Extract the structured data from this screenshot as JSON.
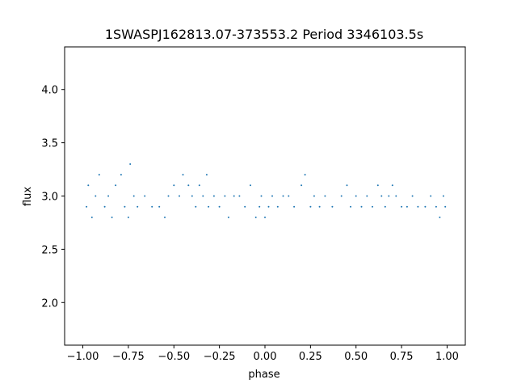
{
  "chart_data": {
    "type": "scatter",
    "title": "1SWASPJ162813.07-373553.2 Period 3346103.5s",
    "xlabel": "phase",
    "ylabel": "flux",
    "xlim": [
      -1.1,
      1.1
    ],
    "ylim": [
      1.6,
      4.4
    ],
    "xticks": [
      -1.0,
      -0.75,
      -0.5,
      -0.25,
      0.0,
      0.25,
      0.5,
      0.75,
      1.0
    ],
    "xtick_labels": [
      "−1.00",
      "−0.75",
      "−0.50",
      "−0.25",
      "0.00",
      "0.25",
      "0.50",
      "0.75",
      "1.00"
    ],
    "yticks": [
      2.0,
      2.5,
      3.0,
      3.5,
      4.0
    ],
    "ytick_labels": [
      "2.0",
      "2.5",
      "3.0",
      "3.5",
      "4.0"
    ],
    "grid": false,
    "marker_color": "#1f77b4",
    "series": [
      {
        "x": [
          -0.98,
          -0.97,
          -0.95,
          -0.93,
          -0.91,
          -0.88,
          -0.86,
          -0.84,
          -0.82,
          -0.79,
          -0.77,
          -0.75,
          -0.74,
          -0.72,
          -0.7,
          -0.66,
          -0.62,
          -0.58,
          -0.55,
          -0.53,
          -0.5,
          -0.47,
          -0.45,
          -0.42,
          -0.4,
          -0.38,
          -0.36,
          -0.34,
          -0.32,
          -0.31,
          -0.28,
          -0.25,
          -0.22,
          -0.2,
          -0.17,
          -0.14,
          -0.11,
          -0.08,
          -0.05,
          -0.03,
          -0.02,
          0.0,
          0.02,
          0.04,
          0.07,
          0.1,
          0.13,
          0.16,
          0.2,
          0.22,
          0.25,
          0.27,
          0.3,
          0.33,
          0.37,
          0.42,
          0.45,
          0.47,
          0.5,
          0.53,
          0.56,
          0.59,
          0.62,
          0.64,
          0.66,
          0.68,
          0.7,
          0.72,
          0.75,
          0.78,
          0.81,
          0.84,
          0.88,
          0.91,
          0.94,
          0.96,
          0.98,
          0.99
        ],
        "y": [
          2.9,
          3.1,
          2.8,
          3.0,
          3.2,
          2.9,
          3.0,
          2.8,
          3.1,
          3.2,
          2.9,
          2.8,
          3.3,
          3.0,
          2.9,
          3.0,
          2.9,
          2.9,
          2.8,
          3.0,
          3.1,
          3.0,
          3.2,
          3.1,
          3.0,
          2.9,
          3.1,
          3.0,
          3.2,
          2.9,
          3.0,
          2.9,
          3.0,
          2.8,
          3.0,
          3.0,
          2.9,
          3.1,
          2.8,
          2.9,
          3.0,
          2.8,
          2.9,
          3.0,
          2.9,
          3.0,
          3.0,
          2.9,
          3.1,
          3.2,
          2.9,
          3.0,
          2.9,
          3.0,
          2.9,
          3.0,
          3.1,
          2.9,
          3.0,
          2.9,
          3.0,
          2.9,
          3.1,
          3.0,
          2.9,
          3.0,
          3.1,
          3.0,
          2.9,
          2.9,
          3.0,
          2.9,
          2.9,
          3.0,
          2.9,
          2.8,
          3.0,
          2.9
        ]
      }
    ]
  }
}
